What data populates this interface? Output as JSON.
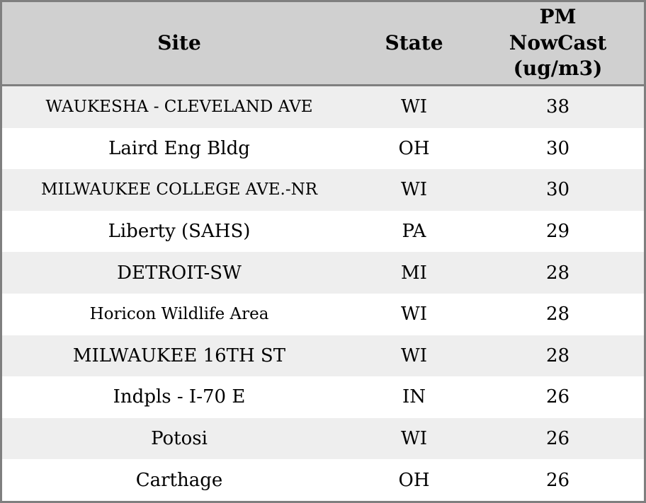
{
  "table": {
    "columns": [
      {
        "key": "site",
        "label": "Site"
      },
      {
        "key": "state",
        "label": "State"
      },
      {
        "key": "pm",
        "label": "PM NowCast (ug/m3)"
      }
    ],
    "rows": [
      {
        "site": "WAUKESHA - CLEVELAND AVE",
        "state": "WI",
        "pm": "38"
      },
      {
        "site": "Laird Eng Bldg",
        "state": "OH",
        "pm": "30"
      },
      {
        "site": "MILWAUKEE COLLEGE AVE.-NR",
        "state": "WI",
        "pm": "30"
      },
      {
        "site": "Liberty (SAHS)",
        "state": "PA",
        "pm": "29"
      },
      {
        "site": "DETROIT-SW",
        "state": "MI",
        "pm": "28"
      },
      {
        "site": "Horicon Wildlife Area",
        "state": "WI",
        "pm": "28"
      },
      {
        "site": "MILWAUKEE 16TH ST",
        "state": "WI",
        "pm": "28"
      },
      {
        "site": "Indpls - I-70 E",
        "state": "IN",
        "pm": "26"
      },
      {
        "site": "Potosi",
        "state": "WI",
        "pm": "26"
      },
      {
        "site": "Carthage",
        "state": "OH",
        "pm": "26"
      }
    ]
  },
  "colors": {
    "header_bg": "#d0d0d0",
    "row_alt_bg": "#eeeeee",
    "row_bg": "#ffffff",
    "border": "#7f7f7f",
    "text": "#000000"
  },
  "chart_data": {
    "type": "table",
    "title": "",
    "columns": [
      "Site",
      "State",
      "PM NowCast (ug/m3)"
    ],
    "rows": [
      [
        "WAUKESHA - CLEVELAND AVE",
        "WI",
        38
      ],
      [
        "Laird Eng Bldg",
        "OH",
        30
      ],
      [
        "MILWAUKEE COLLEGE AVE.-NR",
        "WI",
        30
      ],
      [
        "Liberty (SAHS)",
        "PA",
        29
      ],
      [
        "DETROIT-SW",
        "MI",
        28
      ],
      [
        "Horicon Wildlife Area",
        "WI",
        28
      ],
      [
        "MILWAUKEE 16TH ST",
        "WI",
        28
      ],
      [
        "Indpls - I-70 E",
        "IN",
        26
      ],
      [
        "Potosi",
        "WI",
        26
      ],
      [
        "Carthage",
        "OH",
        26
      ]
    ],
    "layout_hints": {
      "zebra_striping": true,
      "header_position": "top",
      "alignment": "center",
      "grid": "outer-border-and-header-rule-only"
    }
  }
}
